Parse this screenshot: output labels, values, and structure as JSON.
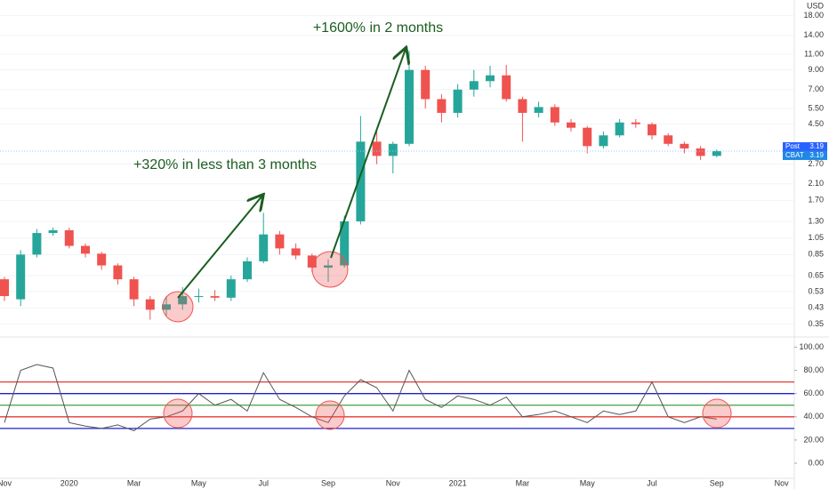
{
  "chart_data": {
    "type": "candlestick",
    "y_unit": "USD",
    "log_scale": true,
    "categories": [
      "Nov",
      null,
      null,
      null,
      "2020",
      null,
      null,
      null,
      "Mar",
      null,
      null,
      null,
      "May",
      null,
      null,
      null,
      "Jul",
      null,
      null,
      null,
      "Sep",
      null,
      null,
      null,
      "Nov",
      null,
      null,
      null,
      "2021",
      null,
      null,
      null,
      "Mar",
      null,
      null,
      null,
      "May",
      null,
      null,
      null,
      "Jul",
      null,
      null,
      null,
      "Sep",
      null,
      null,
      null,
      "Nov"
    ],
    "open": [
      0.62,
      0.48,
      0.85,
      1.12,
      1.16,
      0.95,
      0.86,
      0.74,
      0.62,
      0.48,
      0.42,
      0.45,
      0.5,
      0.5,
      0.49,
      0.62,
      0.78,
      1.1,
      0.92,
      0.84,
      0.72,
      0.74,
      1.3,
      3.6,
      3.0,
      3.5,
      9.0,
      6.2,
      5.2,
      7.0,
      7.8,
      8.4,
      6.2,
      5.2,
      5.6,
      4.6,
      4.3,
      3.4,
      3.9,
      4.6,
      4.5,
      3.9,
      3.5,
      3.3,
      3.0,
      null,
      null,
      null,
      null
    ],
    "high": [
      0.64,
      0.9,
      1.18,
      1.2,
      1.2,
      0.98,
      0.88,
      0.76,
      0.64,
      0.5,
      0.5,
      0.56,
      0.55,
      0.54,
      0.65,
      0.82,
      1.45,
      1.15,
      0.98,
      0.86,
      0.8,
      1.4,
      5,
      4.2,
      3.6,
      11.5,
      9.5,
      6.6,
      7.5,
      9.0,
      9.5,
      9.6,
      6.4,
      6.0,
      5.8,
      4.8,
      4.4,
      4.1,
      4.8,
      4.8,
      4.6,
      4.0,
      3.6,
      3.4,
      3.25,
      null,
      null,
      null,
      null
    ],
    "low": [
      0.47,
      0.44,
      0.82,
      1.08,
      0.92,
      0.82,
      0.7,
      0.58,
      0.44,
      0.37,
      0.39,
      0.42,
      0.46,
      0.47,
      0.47,
      0.6,
      0.76,
      0.85,
      0.8,
      0.68,
      0.6,
      0.72,
      1.25,
      2.7,
      2.4,
      3.4,
      5.5,
      4.6,
      4.9,
      6.4,
      7.2,
      6.0,
      3.6,
      4.9,
      4.4,
      4.1,
      3.1,
      3.3,
      3.8,
      4.3,
      3.7,
      3.4,
      3.1,
      2.85,
      2.95,
      null,
      null,
      null,
      null
    ],
    "close": [
      0.5,
      0.85,
      1.12,
      1.16,
      0.95,
      0.86,
      0.74,
      0.62,
      0.48,
      0.42,
      0.45,
      0.5,
      0.5,
      0.49,
      0.62,
      0.78,
      1.1,
      0.92,
      0.84,
      0.72,
      0.74,
      1.3,
      3.6,
      3.0,
      3.5,
      9.0,
      6.2,
      5.2,
      7.0,
      7.8,
      8.4,
      6.2,
      5.2,
      5.6,
      4.6,
      4.3,
      3.4,
      3.9,
      4.6,
      4.5,
      3.9,
      3.5,
      3.3,
      3.0,
      3.19,
      null,
      null,
      null,
      null
    ],
    "up_color": "#26a69a",
    "down_color": "#ef5350",
    "ylim": [
      0.3,
      22
    ],
    "yticks": [
      {
        "value": 18,
        "label": "18.00"
      },
      {
        "value": 14,
        "label": "14.00"
      },
      {
        "value": 11,
        "label": "11.00"
      },
      {
        "value": 9,
        "label": "9.00"
      },
      {
        "value": 7,
        "label": "7.00"
      },
      {
        "value": 5.5,
        "label": "5.50"
      },
      {
        "value": 4.5,
        "label": "4.50"
      },
      {
        "value": 2.7,
        "label": "2.70"
      },
      {
        "value": 2.1,
        "label": "2.10"
      },
      {
        "value": 1.7,
        "label": "1.70"
      },
      {
        "value": 1.3,
        "label": "1.30"
      },
      {
        "value": 1.05,
        "label": "1.05"
      },
      {
        "value": 0.85,
        "label": "0.85"
      },
      {
        "value": 0.65,
        "label": "0.65"
      },
      {
        "value": 0.53,
        "label": "0.53"
      },
      {
        "value": 0.43,
        "label": "0.43"
      },
      {
        "value": 0.35,
        "label": "0.35"
      }
    ],
    "price_tags": [
      {
        "label": "Post",
        "value": 3.19,
        "color": "#2962ff"
      },
      {
        "label": "CBAT",
        "value": 3.19,
        "color": "#1e88e5"
      }
    ],
    "annotations": [
      "+320% in less than 3 months",
      "+1600% in 2 months"
    ],
    "indicator": {
      "type": "line",
      "color": "#555555",
      "values": [
        35,
        80,
        85,
        82,
        35,
        32,
        30,
        33,
        28,
        38,
        40,
        45,
        60,
        50,
        55,
        45,
        78,
        55,
        48,
        40,
        35,
        58,
        72,
        65,
        45,
        80,
        55,
        48,
        58,
        55,
        50,
        57,
        40,
        42,
        45,
        40,
        35,
        45,
        42,
        45,
        70,
        40,
        35,
        40,
        38,
        null,
        null,
        null,
        null
      ],
      "ylim": [
        -13,
        108
      ],
      "yticks": [
        {
          "value": 100,
          "label": "100.00"
        },
        {
          "value": 80,
          "label": "80.00"
        },
        {
          "value": 60,
          "label": "60.00"
        },
        {
          "value": 40,
          "label": "40.00"
        },
        {
          "value": 20,
          "label": "20.00"
        },
        {
          "value": 0,
          "label": "0.00"
        }
      ],
      "levels": [
        {
          "value": 70,
          "color": "#e53935"
        },
        {
          "value": 60,
          "color": "#1e22c8"
        },
        {
          "value": 50,
          "color": "#43a047"
        },
        {
          "value": 40,
          "color": "#e53935"
        },
        {
          "value": 30,
          "color": "#1e22c8"
        }
      ]
    }
  }
}
